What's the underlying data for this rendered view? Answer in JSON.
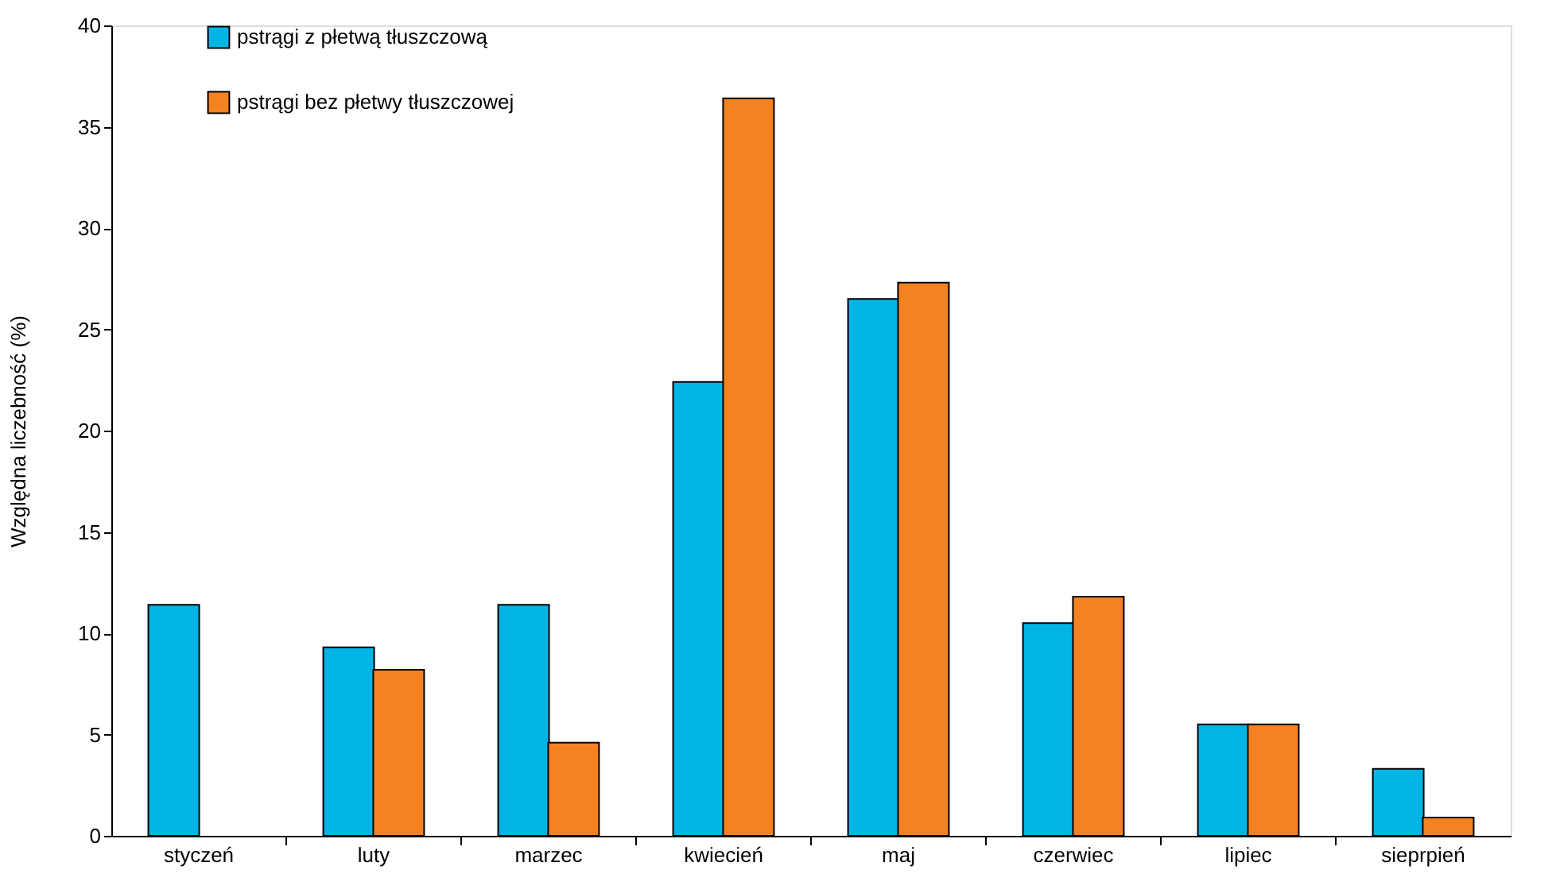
{
  "chart_data": {
    "type": "bar",
    "ylabel": "Względna liczebność (%)",
    "categories": [
      "styczeń",
      "luty",
      "marzec",
      "kwiecień",
      "maj",
      "czerwiec",
      "lipiec",
      "sieprpień"
    ],
    "series": [
      {
        "name": "pstrągi z płetwą tłuszczową",
        "color": "#00b4e6",
        "values": [
          11.4,
          9.3,
          11.4,
          22.4,
          26.5,
          10.5,
          5.5,
          3.3
        ]
      },
      {
        "name": "pstrągi bez płetwy tłuszczowej",
        "color": "#f58220",
        "values": [
          null,
          8.2,
          4.6,
          36.4,
          27.3,
          11.8,
          5.5,
          0.9
        ]
      }
    ],
    "ylim": [
      0,
      40
    ],
    "yticks": [
      0,
      5,
      10,
      15,
      20,
      25,
      30,
      35,
      40
    ],
    "grid": false,
    "legend": "top left"
  }
}
